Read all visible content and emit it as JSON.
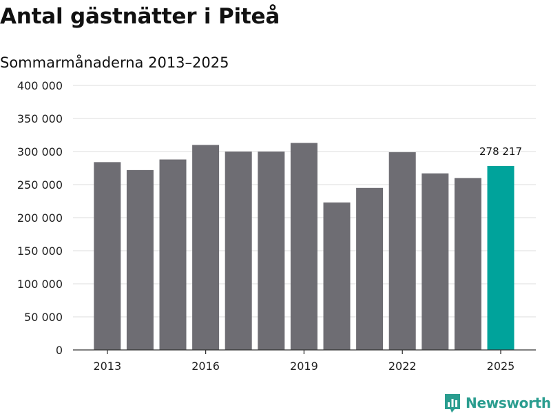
{
  "header": {
    "title": "Antal gästnätter i Piteå",
    "subtitle": "Sommarmånaderna 2013–2025"
  },
  "brand": {
    "name": "Newsworthy",
    "icon": "newsworthy-logo-icon"
  },
  "colors": {
    "bar": "#6e6d73",
    "highlight": "#00a39b",
    "grid": "#dddddd",
    "axis": "#333333",
    "brand": "#2a9d8f"
  },
  "chart_data": {
    "type": "bar",
    "title": "Antal gästnätter i Piteå",
    "subtitle": "Sommarmånaderna 2013–2025",
    "xlabel": "",
    "ylabel": "",
    "categories": [
      "2013",
      "2014",
      "2015",
      "2016",
      "2017",
      "2018",
      "2019",
      "2020",
      "2021",
      "2022",
      "2023",
      "2024",
      "2025"
    ],
    "values": [
      284000,
      272000,
      288000,
      310000,
      300000,
      300000,
      313000,
      223000,
      245000,
      299000,
      267000,
      260000,
      278217
    ],
    "highlight_index": 12,
    "ylim": [
      0,
      400000
    ],
    "yticks": [
      0,
      50000,
      100000,
      150000,
      200000,
      250000,
      300000,
      350000,
      400000
    ],
    "ytick_labels": [
      "0",
      "50 000",
      "100 000",
      "150 000",
      "200 000",
      "250 000",
      "300 000",
      "350 000",
      "400 000"
    ],
    "xtick_labels": [
      "2013",
      "2016",
      "2019",
      "2022",
      "2025"
    ],
    "data_labels": [
      {
        "category": "2025",
        "text": "278 217"
      }
    ],
    "grid": true,
    "legend": "none"
  }
}
